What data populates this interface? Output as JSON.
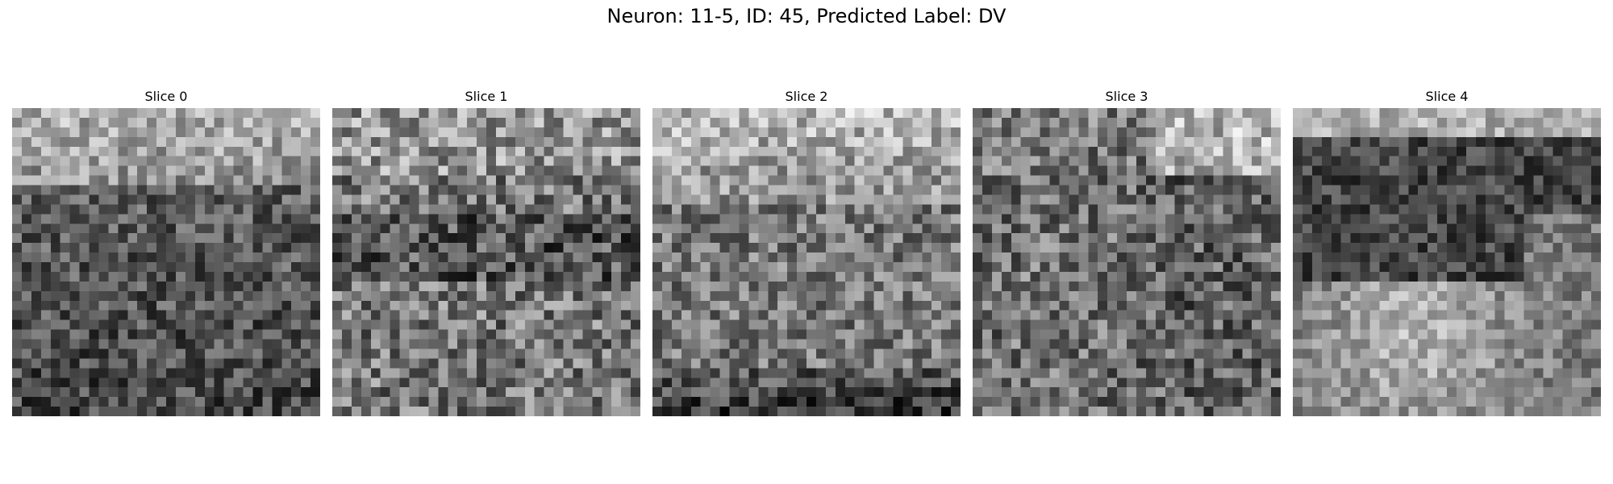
{
  "figure": {
    "title": "Neuron: 11-5, ID: 45, Predicted Label: DV"
  },
  "panels": [
    {
      "title": "Slice 0"
    },
    {
      "title": "Slice 1"
    },
    {
      "title": "Slice 2"
    },
    {
      "title": "Slice 3"
    },
    {
      "title": "Slice 4"
    }
  ],
  "image": {
    "colormap": "grayscale",
    "grid_cells": 32,
    "axes_visible": false
  }
}
